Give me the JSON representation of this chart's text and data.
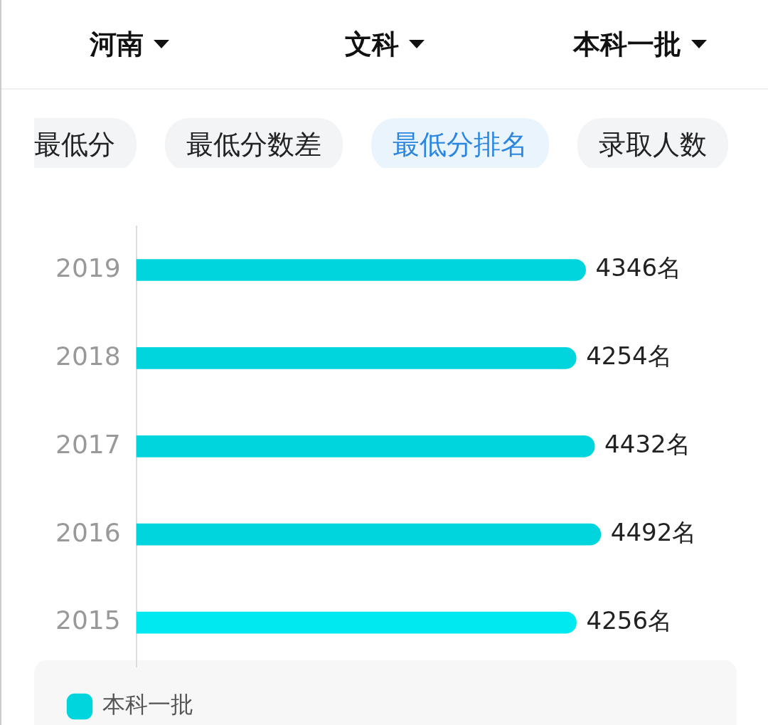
{
  "chart_data": {
    "type": "bar",
    "orientation": "horizontal",
    "categories": [
      "2019",
      "2018",
      "2017",
      "2016",
      "2015"
    ],
    "series": [
      {
        "name": "本科一批",
        "color": "#00d4dc",
        "colors": [
          "#00d4dc",
          "#00d4dc",
          "#00d4dc",
          "#00d4dc",
          "#00e8f0"
        ],
        "values": [
          4346,
          4254,
          4432,
          4492,
          4256
        ],
        "value_labels": [
          "4346名",
          "4254名",
          "4432名",
          "4492名",
          "4256名"
        ]
      }
    ],
    "legend": "bottom",
    "grid": false,
    "annotations": [
      "河南",
      "文科",
      "本科一批",
      "最低分",
      "最低分数差",
      "最低分排名",
      "录取人数"
    ]
  }
}
